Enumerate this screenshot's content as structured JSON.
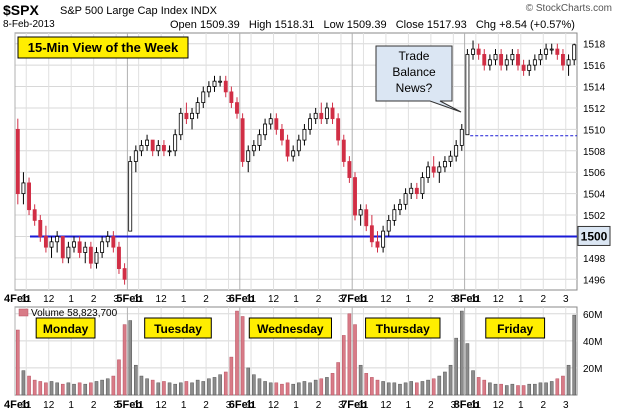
{
  "header": {
    "ticker": "$SPX",
    "name": "S&P 500 Large Cap Index",
    "exchange": "INDX",
    "date": "8-Feb-2013",
    "open_label": "Open",
    "open": "1509.39",
    "high_label": "High",
    "high": "1518.31",
    "low_label": "Low",
    "low": "1509.39",
    "close_label": "Close",
    "close": "1517.93",
    "chg_label": "Chg",
    "chg": "+8.54 (+0.57%)",
    "credit": "© StockCharts.com"
  },
  "colors": {
    "up": "#ffffff",
    "down": "#d12e45",
    "line": "#1a1ad6",
    "vol_up": "#8c8c8c",
    "vol_down": "#d87b87",
    "label_bg": "#ffee00"
  },
  "chart_data": [
    {
      "type": "candlestick",
      "title": "15-Min View of the Week",
      "ylim": [
        1495,
        1519
      ],
      "yticks": [
        1496,
        1498,
        1500,
        1502,
        1504,
        1506,
        1508,
        1510,
        1512,
        1514,
        1516,
        1518
      ],
      "xticks": [
        "4Feb",
        "11",
        "12",
        "1",
        "2",
        "3",
        "5Feb",
        "11",
        "12",
        "1",
        "2",
        "3",
        "6Feb",
        "11",
        "12",
        "1",
        "2",
        "3",
        "7Feb",
        "11",
        "12",
        "1",
        "2",
        "3",
        "8Feb",
        "11",
        "12",
        "1",
        "2",
        "3"
      ],
      "reference_line": {
        "value": 1500,
        "label": "1500"
      },
      "annotation": "Trade Balance News?",
      "candles": [
        [
          1510,
          1511,
          1503,
          1504
        ],
        [
          1504,
          1506,
          1503,
          1505
        ],
        [
          1505,
          1505.5,
          1502,
          1502.5
        ],
        [
          1502.5,
          1503,
          1501,
          1501.5
        ],
        [
          1501.5,
          1502,
          1499.5,
          1500
        ],
        [
          1500,
          1501,
          1498.5,
          1499
        ],
        [
          1499,
          1500,
          1498,
          1499.5
        ],
        [
          1499.5,
          1500.5,
          1498.5,
          1500
        ],
        [
          1500,
          1500,
          1497.5,
          1498
        ],
        [
          1498,
          1499.5,
          1497.5,
          1499
        ],
        [
          1499,
          1500,
          1498.5,
          1499.5
        ],
        [
          1499.5,
          1500,
          1498,
          1498.5
        ],
        [
          1498.5,
          1499.5,
          1497.5,
          1499
        ],
        [
          1499,
          1499.5,
          1497,
          1497.5
        ],
        [
          1497.5,
          1499,
          1497,
          1498.5
        ],
        [
          1498.5,
          1500,
          1498,
          1499.5
        ],
        [
          1499.5,
          1500.5,
          1499,
          1500
        ],
        [
          1500,
          1500.5,
          1498.5,
          1499
        ],
        [
          1499,
          1499.5,
          1496.5,
          1497
        ],
        [
          1497,
          1497.5,
          1495.5,
          1496
        ],
        [
          1500.5,
          1507.5,
          1500.5,
          1507
        ],
        [
          1507,
          1508.5,
          1506,
          1508
        ],
        [
          1508,
          1509,
          1507.5,
          1508.5
        ],
        [
          1508.5,
          1509.5,
          1508,
          1509
        ],
        [
          1509,
          1509,
          1507.5,
          1508
        ],
        [
          1508,
          1509,
          1507.5,
          1508.5
        ],
        [
          1508.5,
          1509,
          1507.5,
          1508
        ],
        [
          1508,
          1508.5,
          1507.5,
          1508
        ],
        [
          1508,
          1510,
          1507.5,
          1509.5
        ],
        [
          1509.5,
          1512,
          1509,
          1511.5
        ],
        [
          1511.5,
          1512.5,
          1510.5,
          1511
        ],
        [
          1511,
          1512,
          1510,
          1511.5
        ],
        [
          1511.5,
          1513,
          1511,
          1512.5
        ],
        [
          1512.5,
          1514,
          1512,
          1513.5
        ],
        [
          1513.5,
          1514.5,
          1513,
          1514
        ],
        [
          1514,
          1515,
          1513.5,
          1514.5
        ],
        [
          1514.5,
          1515,
          1514,
          1514.5
        ],
        [
          1514.5,
          1515,
          1513,
          1513.5
        ],
        [
          1513.5,
          1514,
          1512,
          1512.5
        ],
        [
          1512.5,
          1513,
          1511,
          1511.5
        ],
        [
          1511,
          1511.5,
          1506.5,
          1507
        ],
        [
          1507,
          1508.5,
          1506,
          1508
        ],
        [
          1508,
          1509,
          1507.5,
          1508.5
        ],
        [
          1508.5,
          1510,
          1508,
          1509.5
        ],
        [
          1509.5,
          1511,
          1509,
          1510.5
        ],
        [
          1510.5,
          1511.5,
          1510,
          1511
        ],
        [
          1511,
          1511.5,
          1509.5,
          1510
        ],
        [
          1510,
          1510.5,
          1508.5,
          1509
        ],
        [
          1509,
          1509.5,
          1507,
          1507.5
        ],
        [
          1507.5,
          1508.5,
          1507,
          1508
        ],
        [
          1508,
          1509.5,
          1507.5,
          1509
        ],
        [
          1509,
          1510.5,
          1508.5,
          1510
        ],
        [
          1510,
          1511.5,
          1509.5,
          1511
        ],
        [
          1511,
          1512,
          1510.5,
          1511.5
        ],
        [
          1511.5,
          1512.5,
          1510.5,
          1511
        ],
        [
          1511,
          1512.5,
          1510.5,
          1512
        ],
        [
          1512,
          1512.5,
          1510.5,
          1511
        ],
        [
          1511,
          1511.5,
          1508.5,
          1509
        ],
        [
          1509,
          1509.5,
          1506.5,
          1507
        ],
        [
          1507,
          1507.5,
          1505,
          1505.5
        ],
        [
          1505.5,
          1506,
          1501.5,
          1502
        ],
        [
          1502,
          1503,
          1501,
          1502.5
        ],
        [
          1502.5,
          1503,
          1500.5,
          1501
        ],
        [
          1501,
          1502,
          1499,
          1499.5
        ],
        [
          1499.5,
          1500.5,
          1498.5,
          1499
        ],
        [
          1499,
          1501,
          1498.5,
          1500.5
        ],
        [
          1500.5,
          1502,
          1500,
          1501.5
        ],
        [
          1501.5,
          1503,
          1501,
          1502.5
        ],
        [
          1502.5,
          1503.5,
          1502,
          1503
        ],
        [
          1503,
          1504.5,
          1502.5,
          1504
        ],
        [
          1504,
          1505,
          1503.5,
          1504.5
        ],
        [
          1504.5,
          1505,
          1503.5,
          1504
        ],
        [
          1504,
          1506,
          1503.5,
          1505.5
        ],
        [
          1505.5,
          1507,
          1505,
          1506.5
        ],
        [
          1506.5,
          1507.5,
          1505.5,
          1506
        ],
        [
          1506,
          1507,
          1505,
          1506.5
        ],
        [
          1506.5,
          1507.5,
          1506,
          1507
        ],
        [
          1507,
          1508,
          1506.5,
          1507.5
        ],
        [
          1507.5,
          1509,
          1507,
          1508.5
        ],
        [
          1508.5,
          1510.5,
          1508,
          1510
        ],
        [
          1509.5,
          1517.5,
          1509.5,
          1517
        ],
        [
          1517,
          1518.3,
          1516.5,
          1517.5
        ],
        [
          1517.5,
          1518,
          1516.5,
          1517
        ],
        [
          1517,
          1517.5,
          1515.5,
          1516
        ],
        [
          1516,
          1517,
          1515.5,
          1516.5
        ],
        [
          1516.5,
          1517.5,
          1516,
          1517
        ],
        [
          1517,
          1517.5,
          1515.5,
          1516
        ],
        [
          1516,
          1517,
          1515.5,
          1516.5
        ],
        [
          1516.5,
          1517.5,
          1516,
          1517
        ],
        [
          1517,
          1517.5,
          1515.5,
          1516
        ],
        [
          1516,
          1516.5,
          1515,
          1515.5
        ],
        [
          1515.5,
          1516.5,
          1515,
          1516
        ],
        [
          1516,
          1517,
          1515.5,
          1516.5
        ],
        [
          1516.5,
          1517.5,
          1516,
          1517
        ],
        [
          1517,
          1518,
          1516.5,
          1517.5
        ],
        [
          1517.5,
          1518,
          1517,
          1517.5
        ],
        [
          1517.5,
          1518,
          1516.5,
          1517
        ],
        [
          1517,
          1517.5,
          1515.5,
          1516
        ],
        [
          1516,
          1517,
          1515,
          1516.5
        ],
        [
          1516.5,
          1518,
          1516,
          1517.9
        ]
      ]
    },
    {
      "type": "bar",
      "title": "Volume",
      "latest_volume": "58,823,700",
      "ylim": [
        0,
        65
      ],
      "yticks": [
        "20M",
        "40M",
        "60M"
      ],
      "day_labels": [
        "Monday",
        "Tuesday",
        "Wednesday",
        "Thursday",
        "Friday"
      ],
      "volumes_millions": [
        48,
        18,
        14,
        11,
        10,
        9,
        10,
        9,
        8,
        9,
        8,
        9,
        8,
        9,
        10,
        11,
        12,
        14,
        26,
        52,
        55,
        22,
        14,
        12,
        11,
        9,
        10,
        9,
        8,
        9,
        10,
        9,
        11,
        10,
        12,
        13,
        15,
        17,
        28,
        62,
        58,
        20,
        15,
        12,
        10,
        9,
        9,
        8,
        9,
        8,
        9,
        10,
        9,
        11,
        12,
        13,
        16,
        24,
        44,
        60,
        52,
        22,
        16,
        13,
        11,
        10,
        9,
        9,
        8,
        9,
        10,
        9,
        10,
        11,
        12,
        14,
        17,
        22,
        42,
        62,
        38,
        18,
        13,
        11,
        9,
        8,
        8,
        7,
        8,
        7,
        7,
        8,
        8,
        9,
        9,
        10,
        12,
        14,
        22,
        59
      ]
    }
  ]
}
